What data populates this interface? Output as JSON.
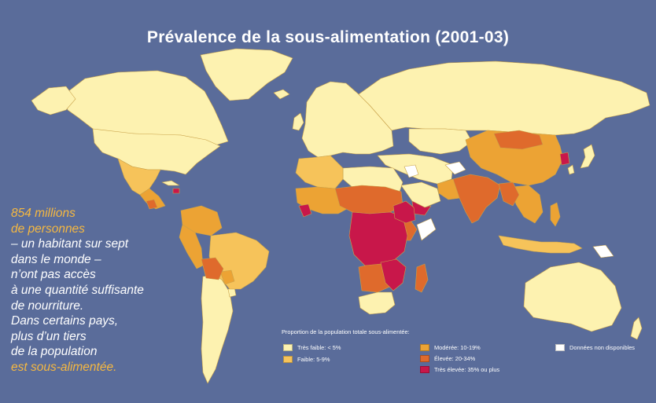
{
  "title": "Prévalence de la sous-alimentation (2001-03)",
  "callout": {
    "line1": "854 millions",
    "line2": "de personnes",
    "body": [
      "– un habitant sur sept",
      "dans le monde –",
      "n’ont pas accès",
      "à une quantité suffisante",
      "de nourriture.",
      "Dans certains pays,",
      "plus d’un tiers",
      "de la population"
    ],
    "last": "est sous-alimentée."
  },
  "legend": {
    "title": "Proportion de la population totale sous-alimentée:",
    "items": [
      {
        "label": "Très faible: < 5%",
        "color": "#fdf2b0"
      },
      {
        "label": "Faible: 5-9%",
        "color": "#f6c35a"
      },
      {
        "label": "Modérée: 10-19%",
        "color": "#eca334"
      },
      {
        "label": "Élevée: 20-34%",
        "color": "#df6a2c"
      },
      {
        "label": "Très élevée: 35% ou plus",
        "color": "#c8174a"
      },
      {
        "label": "Données non disponibles",
        "color": "#ffffff"
      }
    ]
  },
  "colors": {
    "ocean": "#5a6c9a",
    "border": "#c9a24a"
  }
}
